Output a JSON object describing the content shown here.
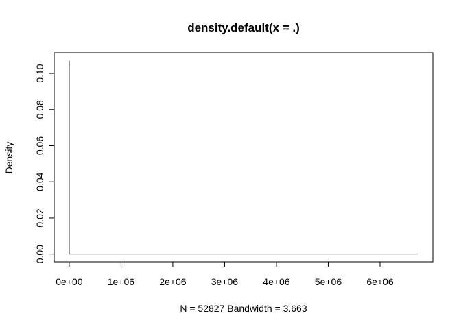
{
  "chart_data": {
    "type": "line",
    "title": "density.default(x = .)",
    "xlabel": "N = 52827   Bandwidth = 3.663",
    "ylabel": "Density",
    "x_ticks": [
      {
        "value": 0,
        "label": "0e+00"
      },
      {
        "value": 1000000,
        "label": "1e+06"
      },
      {
        "value": 2000000,
        "label": "2e+06"
      },
      {
        "value": 3000000,
        "label": "3e+06"
      },
      {
        "value": 4000000,
        "label": "4e+06"
      },
      {
        "value": 5000000,
        "label": "5e+06"
      },
      {
        "value": 6000000,
        "label": "6e+06"
      }
    ],
    "y_ticks": [
      {
        "value": 0.0,
        "label": "0.00"
      },
      {
        "value": 0.02,
        "label": "0.02"
      },
      {
        "value": 0.04,
        "label": "0.04"
      },
      {
        "value": 0.06,
        "label": "0.06"
      },
      {
        "value": 0.08,
        "label": "0.08"
      },
      {
        "value": 0.1,
        "label": "0.10"
      }
    ],
    "xlim": [
      -290000,
      7020000
    ],
    "ylim": [
      -0.0043,
      0.1114
    ],
    "series": [
      {
        "x": [
          -11,
          0,
          10,
          20,
          30,
          60,
          120,
          500,
          2000,
          10000,
          100000,
          1000000,
          3000000,
          6720000
        ],
        "y": [
          0,
          0.107,
          0.06,
          0.02,
          0.005,
          0.001,
          0.0003,
          5e-05,
          1e-05,
          2e-06,
          0,
          0,
          0,
          0
        ],
        "color": "#000000"
      }
    ],
    "grid": false,
    "box": true
  }
}
